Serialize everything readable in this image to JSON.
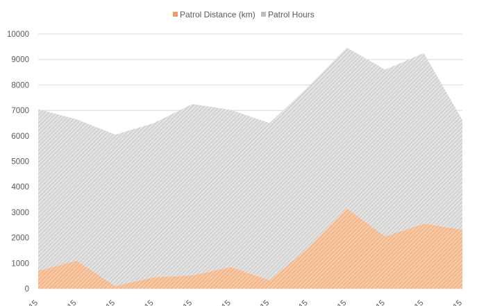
{
  "chart_data": {
    "type": "area",
    "stacked": true,
    "x": [
      "15",
      "15",
      "15",
      "15",
      "15",
      "15",
      "15",
      "15",
      "15",
      "15",
      "15",
      "15"
    ],
    "series": [
      {
        "name": "Patrol Distance (km)",
        "color": "#f4b183",
        "pattern": "diagonal-hatch",
        "values": [
          700,
          1100,
          100,
          450,
          520,
          850,
          330,
          1600,
          3150,
          2050,
          2550,
          2320
        ]
      },
      {
        "name": "Patrol Hours",
        "color": "#c8c8c8",
        "pattern": "diagonal-hatch",
        "values": [
          6350,
          5550,
          5950,
          6050,
          6730,
          6170,
          6170,
          6330,
          6320,
          6550,
          6700,
          4300
        ]
      }
    ],
    "ylim": [
      0,
      10000
    ],
    "yticks": [
      "0",
      "1000",
      "2000",
      "3000",
      "4000",
      "5000",
      "6000",
      "7000",
      "8000",
      "9000",
      "10000"
    ],
    "grid": true,
    "legend_position": "top"
  }
}
